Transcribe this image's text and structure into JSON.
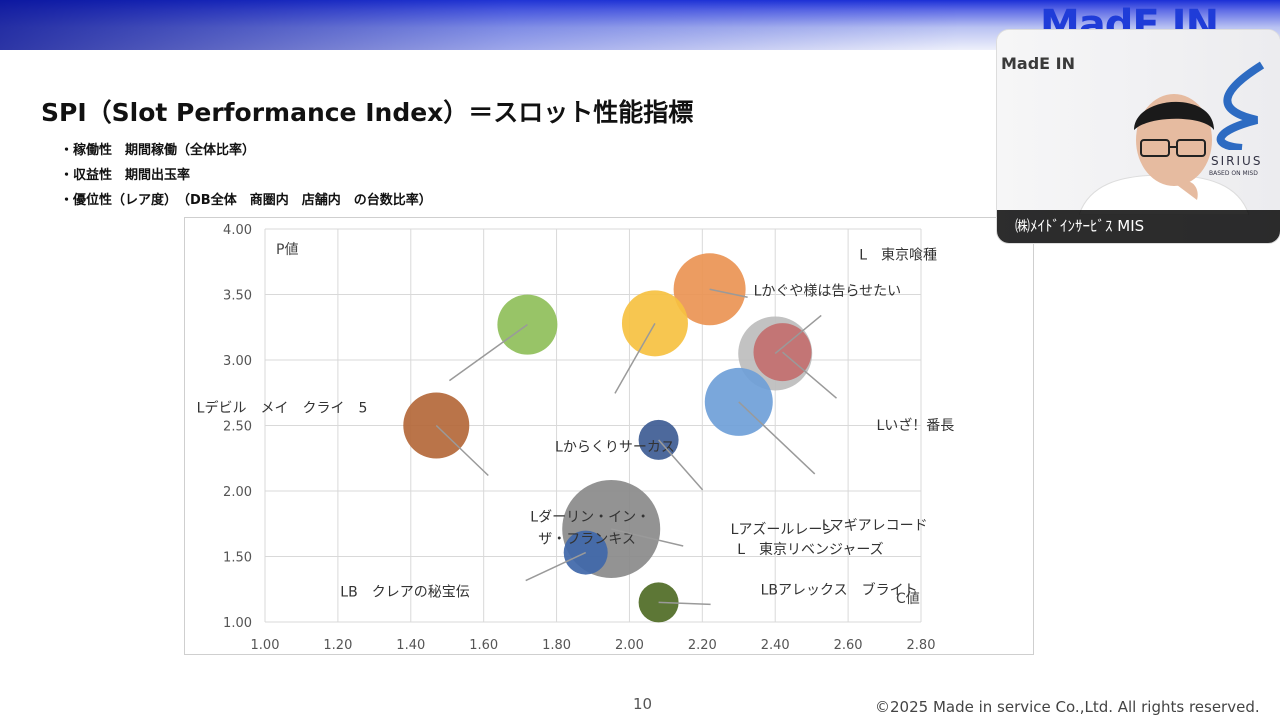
{
  "header": {
    "logo_text": "MadE IN"
  },
  "slide": {
    "title": "SPI（Slot Performance Index）＝スロット性能指標",
    "bullets": [
      "・稼働性　期間稼働（全体比率）",
      "・収益性　期間出玉率",
      "・優位性（レア度）　（DB全体　商圏内　店舗内　の台数比率）"
    ],
    "page_number": "10",
    "copyright": "©2025 Made in service Co.,Ltd. All rights reserved."
  },
  "webcam": {
    "logo": "MadE IN",
    "brand": "SIRIUS",
    "brand_sub": "BASED ON MISD",
    "caption": "㈱ﾒｲﾄﾞｲﾝｻｰﾋﾞｽ MIS"
  },
  "chart_data": {
    "type": "bubble",
    "xlabel": "C値",
    "ylabel": "P値",
    "xlim": [
      1.0,
      2.8
    ],
    "ylim": [
      1.0,
      4.0
    ],
    "xticks": [
      "1.00",
      "1.20",
      "1.40",
      "1.60",
      "1.80",
      "2.00",
      "2.20",
      "2.40",
      "2.60",
      "2.80"
    ],
    "yticks": [
      "1.00",
      "1.50",
      "2.00",
      "2.50",
      "3.00",
      "3.50",
      "4.00"
    ],
    "grid": true,
    "series": [
      {
        "name": "Lかぐや様は告らせたい",
        "x": 2.22,
        "y": 3.54,
        "size": 36,
        "color": "#ea9454"
      },
      {
        "name": "L　東京喰種",
        "x": 2.4,
        "y": 3.05,
        "size": 37,
        "color": "#bdbdbd"
      },
      {
        "name": "Lいざ！番長",
        "x": 2.42,
        "y": 3.06,
        "size": 29,
        "color": "#c36f6f"
      },
      {
        "name": "Lデビル　メイ　クライ　5",
        "x": 1.72,
        "y": 3.27,
        "size": 30,
        "color": "#8fbf5a"
      },
      {
        "name": "Lからくりサーカス",
        "x": 2.07,
        "y": 3.28,
        "size": 33,
        "color": "#f6c141"
      },
      {
        "name": "Lマギアレコード",
        "x": 2.3,
        "y": 2.68,
        "size": 34,
        "color": "#6f9fd8"
      },
      {
        "name": "Lダーリン・イン・ザ・フランキス",
        "x": 1.47,
        "y": 2.5,
        "size": 33,
        "color": "#b4683a"
      },
      {
        "name": "Lアズールレーン",
        "x": 2.08,
        "y": 2.39,
        "size": 20,
        "color": "#3e5c94"
      },
      {
        "name": "L　東京リベンジャーズ",
        "x": 1.95,
        "y": 1.71,
        "size": 49,
        "color": "#8a8a8a"
      },
      {
        "name": "LB　クレアの秘宝伝",
        "x": 1.88,
        "y": 1.53,
        "size": 22,
        "color": "#3f67a9"
      },
      {
        "name": "LBアレックス　ブライト",
        "x": 2.08,
        "y": 1.15,
        "size": 20,
        "color": "#4f6b25"
      }
    ]
  }
}
